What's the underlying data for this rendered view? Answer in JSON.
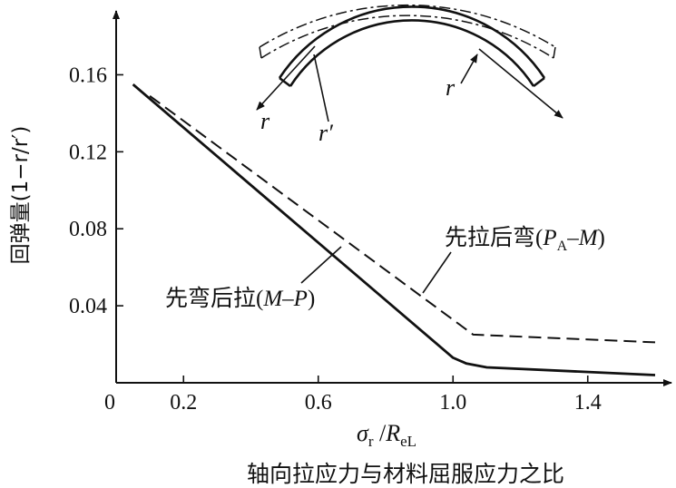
{
  "chart_data": {
    "type": "line",
    "title": "",
    "ylabel": "回弹量(1−r/r′)",
    "xlabel_symbol": "σr /ReL",
    "xlabel_symbol_parts": {
      "sigma": "σ",
      "sigma_sub": "r",
      "slash": " /",
      "R": "R",
      "R_sub": "eL"
    },
    "xlabel_caption": "轴向拉应力与材料屈服应力之比",
    "xlim": [
      0,
      1.6
    ],
    "ylim": [
      0,
      0.18
    ],
    "x_ticks": [
      0.2,
      0.6,
      1.0,
      1.4
    ],
    "x_tick_labels": [
      "0.2",
      "0.6",
      "1.0",
      "1.4"
    ],
    "y_ticks": [
      0.04,
      0.08,
      0.12,
      0.16
    ],
    "y_tick_labels": [
      "0.04",
      "0.08",
      "0.12",
      "0.16"
    ],
    "origin_label": "0",
    "grid": false,
    "legend": "none",
    "series": [
      {
        "name": "先弯后拉(M–P)",
        "style": "solid",
        "x": [
          0.05,
          1.0,
          1.04,
          1.1,
          1.6
        ],
        "y": [
          0.155,
          0.013,
          0.01,
          0.008,
          0.004
        ]
      },
      {
        "name": "先拉后弯(PA–M)",
        "style": "dashed",
        "x": [
          0.1,
          1.06,
          1.6
        ],
        "y": [
          0.149,
          0.025,
          0.021
        ]
      }
    ],
    "annotations": {
      "solid_label_parts": {
        "cn": "先弯后拉",
        "open": "(",
        "M": "M",
        "dash": "–",
        "P": "P",
        "close": ")"
      },
      "dashed_label_parts": {
        "cn": "先拉后弯",
        "open": "(",
        "P": "P",
        "P_sub": "A",
        "dash": "–",
        "M": "M",
        "close": ")"
      }
    },
    "inset": {
      "labels": [
        "r",
        "r′",
        "r"
      ]
    }
  }
}
